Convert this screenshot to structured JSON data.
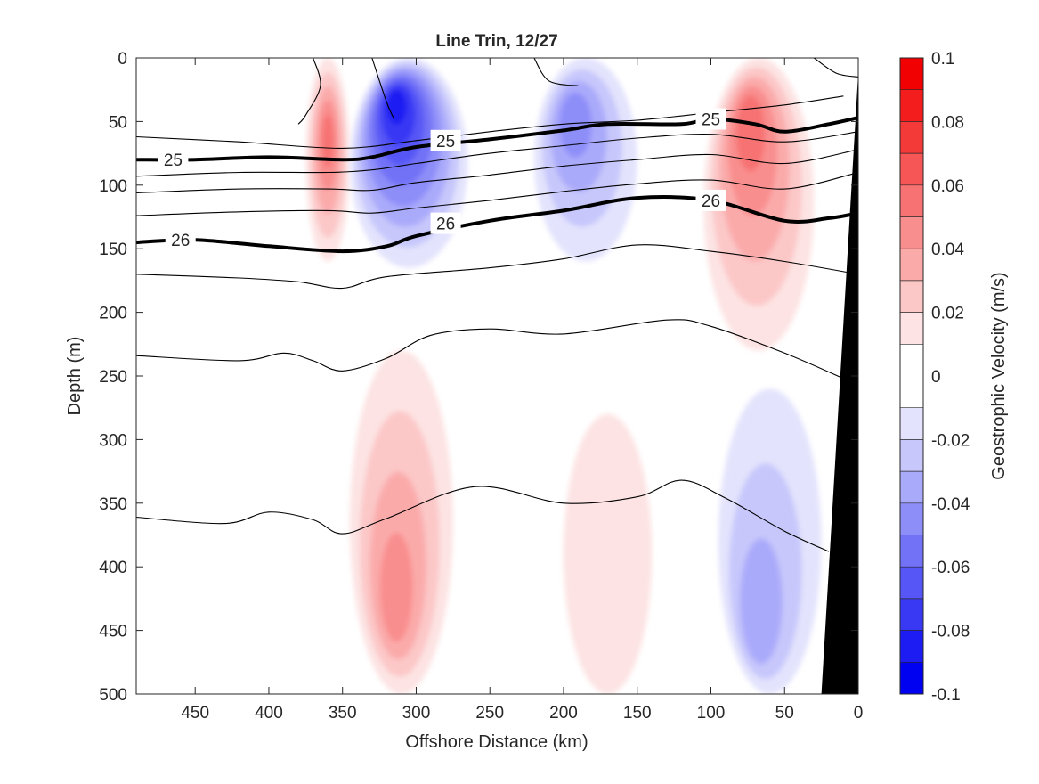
{
  "chart_data": {
    "type": "contour",
    "title": "Line Trin, 12/27",
    "xlabel": "Offshore Distance (km)",
    "ylabel": "Depth (m)",
    "xlim": [
      490,
      0
    ],
    "x_reversed": true,
    "ylim": [
      0,
      500
    ],
    "y_reversed": true,
    "xticks": [
      450,
      400,
      350,
      300,
      250,
      200,
      150,
      100,
      50,
      0
    ],
    "yticks": [
      0,
      50,
      100,
      150,
      200,
      250,
      300,
      350,
      400,
      450,
      500
    ],
    "colorbar": {
      "label": "Geostrophic Velocity (m/s)",
      "range": [
        -0.1,
        0.1
      ],
      "levels": [
        -0.1,
        -0.09,
        -0.08,
        -0.07,
        -0.06,
        -0.05,
        -0.04,
        -0.03,
        -0.02,
        -0.01,
        0.01,
        0.02,
        0.03,
        0.04,
        0.05,
        0.06,
        0.07,
        0.08,
        0.09,
        0.1
      ],
      "tick_values": [
        0.1,
        0.08,
        0.06,
        0.04,
        0.02,
        0,
        -0.02,
        -0.04,
        -0.06,
        -0.08,
        -0.1
      ],
      "tick_labels": [
        "0.1",
        "0.08",
        "0.06",
        "0.04",
        "0.02",
        "0",
        "-0.02",
        "-0.04",
        "-0.06",
        "-0.08",
        "-0.1"
      ],
      "colors": {
        "positive": [
          "#fde3e3",
          "#fcc7c7",
          "#fbaaaa",
          "#f98e8e",
          "#f77272",
          "#f65656",
          "#f43939",
          "#f31d1d",
          "#f10101"
        ],
        "negative": [
          "#e3e3fd",
          "#c7c7fc",
          "#aaaafb",
          "#8e8ef9",
          "#7272f7",
          "#5656f6",
          "#3939f4",
          "#1d1df3",
          "#0101f1"
        ]
      }
    },
    "velocity_features": [
      {
        "sign": "positive",
        "peak": 0.05,
        "x_range": [
          375,
          345
        ],
        "depth_range": [
          0,
          160
        ],
        "core": [
          360,
          60
        ]
      },
      {
        "sign": "negative",
        "peak": -0.08,
        "x_range": [
          345,
          265
        ],
        "depth_range": [
          0,
          165
        ],
        "core": [
          315,
          30
        ]
      },
      {
        "sign": "negative",
        "peak": -0.04,
        "x_range": [
          220,
          150
        ],
        "depth_range": [
          0,
          160
        ],
        "core": [
          195,
          40
        ]
      },
      {
        "sign": "positive",
        "peak": 0.05,
        "x_range": [
          105,
          30
        ],
        "depth_range": [
          0,
          230
        ],
        "core": [
          75,
          40
        ]
      },
      {
        "sign": "positive",
        "peak": 0.04,
        "x_range": [
          345,
          275
        ],
        "depth_range": [
          230,
          500
        ],
        "core": [
          315,
          440
        ]
      },
      {
        "sign": "negative",
        "peak": -0.03,
        "x_range": [
          95,
          25
        ],
        "depth_range": [
          260,
          500
        ],
        "core": [
          70,
          460
        ]
      },
      {
        "sign": "positive",
        "peak": 0.01,
        "x_range": [
          200,
          140
        ],
        "depth_range": [
          280,
          500
        ],
        "core": [
          180,
          420
        ]
      }
    ],
    "isopycnals": [
      {
        "label": "",
        "bold": false,
        "points": [
          [
            490,
            62
          ],
          [
            420,
            66
          ],
          [
            350,
            71
          ],
          [
            300,
            65
          ],
          [
            250,
            58
          ],
          [
            200,
            52
          ],
          [
            150,
            49
          ],
          [
            100,
            43
          ],
          [
            50,
            37
          ],
          [
            10,
            30
          ]
        ]
      },
      {
        "label": "25",
        "bold": true,
        "label_at": [
          [
            465,
            80
          ],
          [
            280,
            65
          ],
          [
            100,
            48
          ]
        ],
        "points": [
          [
            490,
            80
          ],
          [
            450,
            80
          ],
          [
            400,
            78
          ],
          [
            350,
            80
          ],
          [
            330,
            78
          ],
          [
            300,
            70
          ],
          [
            250,
            64
          ],
          [
            200,
            57
          ],
          [
            170,
            52
          ],
          [
            120,
            52
          ],
          [
            100,
            48
          ],
          [
            70,
            52
          ],
          [
            50,
            58
          ],
          [
            20,
            52
          ],
          [
            0,
            47
          ]
        ]
      },
      {
        "label": "",
        "bold": false,
        "points": [
          [
            490,
            93
          ],
          [
            420,
            90
          ],
          [
            360,
            90
          ],
          [
            330,
            88
          ],
          [
            300,
            83
          ],
          [
            250,
            75
          ],
          [
            200,
            69
          ],
          [
            150,
            63
          ],
          [
            100,
            60
          ],
          [
            50,
            66
          ],
          [
            0,
            58
          ]
        ]
      },
      {
        "label": "",
        "bold": false,
        "points": [
          [
            490,
            106
          ],
          [
            420,
            103
          ],
          [
            360,
            103
          ],
          [
            330,
            104
          ],
          [
            300,
            98
          ],
          [
            250,
            92
          ],
          [
            200,
            85
          ],
          [
            150,
            80
          ],
          [
            100,
            76
          ],
          [
            50,
            83
          ],
          [
            0,
            72
          ]
        ]
      },
      {
        "label": "",
        "bold": false,
        "points": [
          [
            490,
            124
          ],
          [
            420,
            121
          ],
          [
            360,
            120
          ],
          [
            330,
            122
          ],
          [
            300,
            118
          ],
          [
            250,
            112
          ],
          [
            200,
            105
          ],
          [
            150,
            99
          ],
          [
            100,
            96
          ],
          [
            50,
            103
          ],
          [
            0,
            90
          ]
        ]
      },
      {
        "label": "26",
        "bold": true,
        "label_at": [
          [
            460,
            143
          ],
          [
            280,
            130
          ],
          [
            100,
            112
          ]
        ],
        "points": [
          [
            490,
            145
          ],
          [
            450,
            143
          ],
          [
            400,
            148
          ],
          [
            350,
            152
          ],
          [
            320,
            148
          ],
          [
            300,
            140
          ],
          [
            250,
            128
          ],
          [
            200,
            120
          ],
          [
            150,
            110
          ],
          [
            100,
            112
          ],
          [
            50,
            128
          ],
          [
            20,
            126
          ],
          [
            0,
            122
          ]
        ]
      },
      {
        "label": "",
        "bold": false,
        "points": [
          [
            490,
            170
          ],
          [
            420,
            173
          ],
          [
            380,
            176
          ],
          [
            350,
            181
          ],
          [
            320,
            172
          ],
          [
            250,
            165
          ],
          [
            200,
            158
          ],
          [
            150,
            147
          ],
          [
            100,
            152
          ],
          [
            50,
            160
          ],
          [
            0,
            170
          ]
        ]
      },
      {
        "label": "",
        "bold": false,
        "points": [
          [
            490,
            234
          ],
          [
            420,
            238
          ],
          [
            390,
            232
          ],
          [
            370,
            238
          ],
          [
            350,
            246
          ],
          [
            320,
            236
          ],
          [
            290,
            218
          ],
          [
            250,
            213
          ],
          [
            200,
            217
          ],
          [
            130,
            206
          ],
          [
            100,
            211
          ],
          [
            50,
            232
          ],
          [
            10,
            252
          ]
        ]
      },
      {
        "label": "",
        "bold": false,
        "points": [
          [
            490,
            361
          ],
          [
            430,
            366
          ],
          [
            400,
            357
          ],
          [
            370,
            363
          ],
          [
            350,
            374
          ],
          [
            320,
            362
          ],
          [
            260,
            337
          ],
          [
            200,
            350
          ],
          [
            150,
            345
          ],
          [
            120,
            332
          ],
          [
            90,
            346
          ],
          [
            50,
            372
          ],
          [
            20,
            388
          ]
        ]
      },
      {
        "label": "",
        "bold": false,
        "points": [
          [
            370,
            0
          ],
          [
            365,
            22
          ],
          [
            375,
            45
          ],
          [
            380,
            52
          ]
        ]
      },
      {
        "label": "",
        "bold": false,
        "points": [
          [
            330,
            0
          ],
          [
            320,
            35
          ],
          [
            315,
            48
          ]
        ]
      },
      {
        "label": "",
        "bold": false,
        "points": [
          [
            220,
            0
          ],
          [
            210,
            18
          ],
          [
            190,
            22
          ]
        ]
      },
      {
        "label": "",
        "bold": false,
        "points": [
          [
            30,
            0
          ],
          [
            15,
            12
          ],
          [
            0,
            15
          ]
        ]
      }
    ],
    "topography": {
      "color": "#000000",
      "polygon": [
        [
          0,
          12
        ],
        [
          0,
          500
        ],
        [
          25,
          500
        ]
      ]
    }
  }
}
